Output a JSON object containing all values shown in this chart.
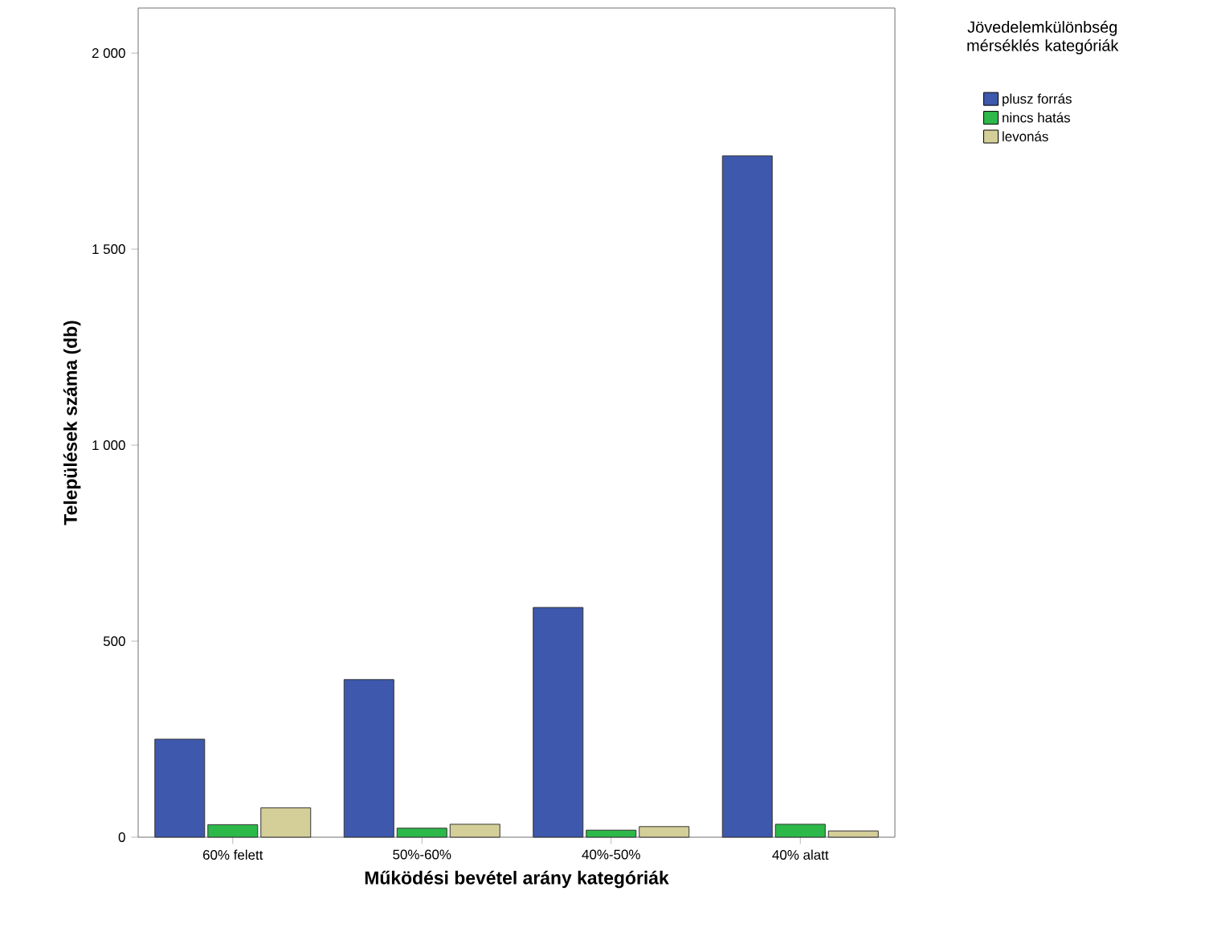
{
  "chart_data": {
    "type": "bar",
    "xlabel": "Működési bevétel arány kategóriák",
    "ylabel": "Települések száma (db)",
    "legend_title": "Jövedelemkülönbség mérséklés kategóriák",
    "categories": [
      "60% felett",
      "50%-60%",
      "40%-50%",
      "40% alatt"
    ],
    "series": [
      {
        "name": "plusz forrás",
        "color": "#3d58ac",
        "values": [
          250,
          402,
          586,
          1738
        ]
      },
      {
        "name": "nincs hatás",
        "color": "#2db84a",
        "values": [
          32,
          23,
          18,
          33
        ]
      },
      {
        "name": "levonás",
        "color": "#d4ce98",
        "values": [
          75,
          33,
          27,
          16
        ]
      }
    ],
    "ylim": [
      0,
      2115
    ],
    "yticks": [
      0,
      500,
      {
        "value": 1000,
        "label": "1 000"
      },
      {
        "value": 1500,
        "label": "1 500"
      },
      {
        "value": 2000,
        "label": "2 000"
      }
    ],
    "grid": false,
    "legend": "top right"
  }
}
